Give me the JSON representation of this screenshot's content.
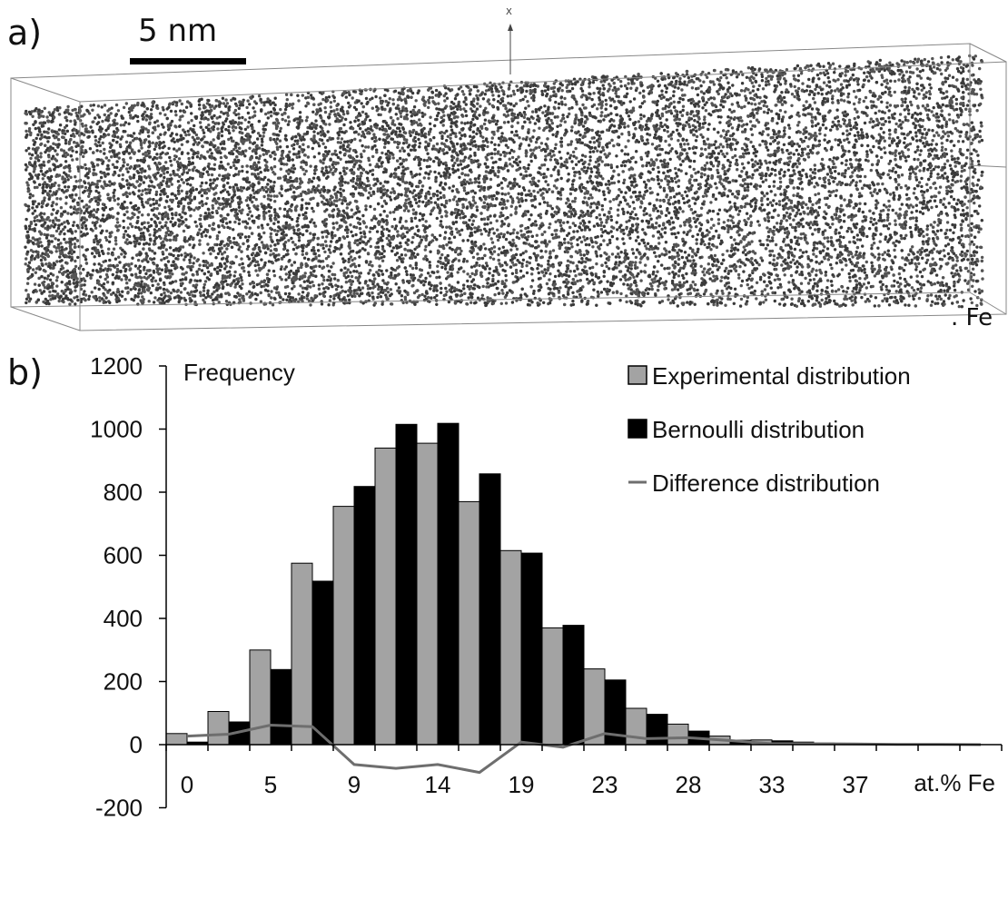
{
  "panel_a": {
    "label": "a)",
    "scale_bar_label": "5 nm",
    "axis_marker": "X",
    "species_label": ". Fe"
  },
  "panel_b": {
    "label": "b)"
  },
  "chart_data": {
    "type": "bar",
    "ylabel": "Frequency",
    "xlabel": "at.% Fe",
    "ylim": [
      -200,
      1200
    ],
    "yticks": [
      -200,
      0,
      200,
      400,
      600,
      800,
      1000,
      1200
    ],
    "x_tick_labels": [
      "0",
      "5",
      "9",
      "14",
      "19",
      "23",
      "28",
      "33",
      "37"
    ],
    "grid": false,
    "legend_position": "top-right",
    "colors": {
      "experimental": "#a3a3a3",
      "bernoulli": "#000000",
      "difference": "#6e6e6e"
    },
    "series": [
      {
        "name": "Experimental distribution",
        "values": [
          35,
          105,
          300,
          575,
          755,
          940,
          955,
          770,
          615,
          370,
          240,
          115,
          65,
          27,
          15,
          8,
          4,
          2,
          1,
          0
        ]
      },
      {
        "name": "Bernoulli distribution",
        "values": [
          8,
          72,
          238,
          518,
          818,
          1015,
          1018,
          858,
          607,
          378,
          205,
          96,
          43,
          14,
          12,
          5,
          2,
          1,
          0,
          0
        ]
      },
      {
        "name": "Difference distribution",
        "values": [
          27,
          33,
          62,
          57,
          -63,
          -75,
          -63,
          -88,
          8,
          -8,
          35,
          19,
          22,
          13,
          3,
          3,
          2,
          1,
          1,
          0
        ]
      }
    ]
  }
}
